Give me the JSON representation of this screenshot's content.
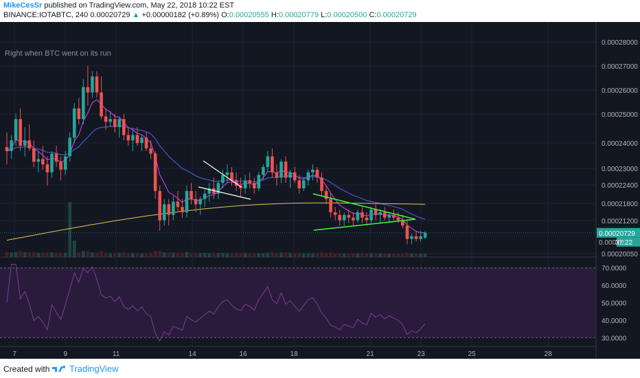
{
  "header": {
    "username": "MikeCesSr",
    "published_text": "published on TradingView.com, May 22, 2018 10:22 EST",
    "symbol": "BINANCE:IOTABTC, 240",
    "last": "0.00020729",
    "change_arrow": "▲",
    "change": "+0.00000182 (+0.89%)",
    "open_label": "O:",
    "open": "0.00020555",
    "high_label": "H:",
    "high": "0.00020779",
    "low_label": "L:",
    "low": "0.00020500",
    "close_label": "C:",
    "close": "0.00020729"
  },
  "footer": {
    "created_with": "Created with",
    "brand": "TradingView"
  },
  "colors": {
    "background": "#131722",
    "rsi_band": "#2a1b3d",
    "up": "#26a69a",
    "down": "#ef5350",
    "ema_fast": "#e040fb",
    "ema_mid": "#3f51b5",
    "ema_slow": "#e6c84a",
    "rsi": "#7b3f8f",
    "annot_white": "#ffffff",
    "annot_green": "#3cff3c",
    "price_tag": "#26a69a"
  },
  "chart_data": [
    {
      "type": "candlestick",
      "annotation": "Right when BTC went on its run",
      "x_ticks": [
        "7",
        "9",
        "11",
        "14",
        "16",
        "18",
        "21",
        "23",
        "25",
        "28"
      ],
      "x_tick_days": [
        7,
        9,
        11,
        14,
        16,
        18,
        21,
        23,
        25,
        28
      ],
      "y_ticks": [
        "0.00028000",
        "0.00027000",
        "0.00026000",
        "0.00025000",
        "0.00024000",
        "0.00023000",
        "0.00022400",
        "0.00021800",
        "0.00021200",
        "0.00020050"
      ],
      "y_tick_values": [
        0.00028,
        0.00027,
        0.00026,
        0.00025,
        0.00024,
        0.00023,
        0.000224,
        0.000218,
        0.000212,
        0.0002005
      ],
      "last_price_label": "0.00020729",
      "countdown_label": "37:22",
      "pre_tag_label": "0.00020",
      "candles_ohlc": [
        [
          0.0002395,
          0.000245,
          0.000233,
          0.000238
        ],
        [
          0.000238,
          0.000244,
          0.000235,
          0.000242
        ],
        [
          0.000242,
          0.000252,
          0.00024,
          0.00025
        ],
        [
          0.00025,
          0.000254,
          0.000238,
          0.00024
        ],
        [
          0.00024,
          0.000247,
          0.000236,
          0.000242
        ],
        [
          0.000242,
          0.000248,
          0.000238,
          0.000239
        ],
        [
          0.000239,
          0.000242,
          0.000232,
          0.000234
        ],
        [
          0.000234,
          0.000238,
          0.00023,
          0.000235
        ],
        [
          0.000235,
          0.00024,
          0.000231,
          0.000233
        ],
        [
          0.000233,
          0.000236,
          0.000225,
          0.00023
        ],
        [
          0.00023,
          0.000238,
          0.000228,
          0.000237
        ],
        [
          0.000237,
          0.00024,
          0.000232,
          0.000234
        ],
        [
          0.000234,
          0.000236,
          0.000227,
          0.000231
        ],
        [
          0.000231,
          0.000238,
          0.000229,
          0.000236
        ],
        [
          0.000236,
          0.000245,
          0.000234,
          0.000243
        ],
        [
          0.000243,
          0.000256,
          0.000241,
          0.000254
        ],
        [
          0.000254,
          0.000258,
          0.000248,
          0.00025
        ],
        [
          0.00025,
          0.000265,
          0.000248,
          0.000262
        ],
        [
          0.000262,
          0.00027,
          0.000255,
          0.00026
        ],
        [
          0.00026,
          0.000268,
          0.000258,
          0.000266
        ],
        [
          0.000266,
          0.000268,
          0.000258,
          0.00026
        ],
        [
          0.00026,
          0.000266,
          0.00025,
          0.000251
        ],
        [
          0.000251,
          0.000254,
          0.000246,
          0.000249
        ],
        [
          0.000249,
          0.000253,
          0.000247,
          0.00025
        ],
        [
          0.00025,
          0.000252,
          0.000245,
          0.000247
        ],
        [
          0.000247,
          0.000251,
          0.000243,
          0.00025
        ],
        [
          0.00025,
          0.000252,
          0.000242,
          0.000244
        ],
        [
          0.000244,
          0.000247,
          0.00024,
          0.000242
        ],
        [
          0.000242,
          0.000246,
          0.000238,
          0.000244
        ],
        [
          0.000244,
          0.000247,
          0.00024,
          0.000241
        ],
        [
          0.000241,
          0.000244,
          0.000238,
          0.000243
        ],
        [
          0.000243,
          0.000245,
          0.000238,
          0.000239
        ],
        [
          0.000239,
          0.000242,
          0.000235,
          0.000237
        ],
        [
          0.000237,
          0.000238,
          0.00022,
          0.000223
        ],
        [
          0.000223,
          0.000225,
          0.000208,
          0.000212
        ],
        [
          0.000212,
          0.00022,
          0.00021,
          0.000218
        ],
        [
          0.000218,
          0.00022,
          0.00021,
          0.000214
        ],
        [
          0.000214,
          0.000221,
          0.000212,
          0.000219
        ],
        [
          0.000219,
          0.000223,
          0.000215,
          0.000217
        ],
        [
          0.000217,
          0.00022,
          0.000213,
          0.000215
        ],
        [
          0.000215,
          0.000225,
          0.000213,
          0.000223
        ],
        [
          0.000223,
          0.000226,
          0.000218,
          0.00022
        ],
        [
          0.00022,
          0.000223,
          0.000215,
          0.000218
        ],
        [
          0.000218,
          0.000221,
          0.000214,
          0.00022
        ],
        [
          0.00022,
          0.000224,
          0.000217,
          0.000222
        ],
        [
          0.000222,
          0.000226,
          0.000219,
          0.000224
        ],
        [
          0.000224,
          0.000228,
          0.00022,
          0.000222
        ],
        [
          0.000222,
          0.000227,
          0.00022,
          0.000226
        ],
        [
          0.000226,
          0.000231,
          0.000224,
          0.000229
        ],
        [
          0.000229,
          0.000233,
          0.000226,
          0.00023
        ],
        [
          0.00023,
          0.000232,
          0.000225,
          0.000227
        ],
        [
          0.000227,
          0.00023,
          0.000223,
          0.000225
        ],
        [
          0.000225,
          0.000228,
          0.000221,
          0.000224
        ],
        [
          0.000224,
          0.000229,
          0.000222,
          0.000227
        ],
        [
          0.000227,
          0.00023,
          0.000224,
          0.000226
        ],
        [
          0.000226,
          0.000228,
          0.000222,
          0.000224
        ],
        [
          0.000224,
          0.00023,
          0.000223,
          0.000229
        ],
        [
          0.000229,
          0.000233,
          0.000227,
          0.000232
        ],
        [
          0.000232,
          0.000238,
          0.00023,
          0.000236
        ],
        [
          0.000236,
          0.000239,
          0.000228,
          0.00023
        ],
        [
          0.00023,
          0.000233,
          0.000225,
          0.000228
        ],
        [
          0.000228,
          0.000235,
          0.000226,
          0.000234
        ],
        [
          0.000234,
          0.000236,
          0.000226,
          0.000228
        ],
        [
          0.000228,
          0.000231,
          0.000224,
          0.00023
        ],
        [
          0.00023,
          0.000232,
          0.000226,
          0.000227
        ],
        [
          0.000227,
          0.000229,
          0.000222,
          0.000224
        ],
        [
          0.000224,
          0.000228,
          0.000223,
          0.000227
        ],
        [
          0.000227,
          0.000231,
          0.000225,
          0.00023
        ],
        [
          0.00023,
          0.000233,
          0.000227,
          0.000231
        ],
        [
          0.000231,
          0.000232,
          0.000226,
          0.000228
        ],
        [
          0.000228,
          0.00023,
          0.000221,
          0.000223
        ],
        [
          0.000223,
          0.000225,
          0.000218,
          0.00022
        ],
        [
          0.00022,
          0.000222,
          0.000213,
          0.000215
        ],
        [
          0.000215,
          0.000217,
          0.000212,
          0.000214
        ],
        [
          0.000214,
          0.000216,
          0.00021,
          0.000212
        ],
        [
          0.000212,
          0.000215,
          0.00021,
          0.000214
        ],
        [
          0.000214,
          0.000216,
          0.000211,
          0.000213
        ],
        [
          0.000213,
          0.000215,
          0.00021,
          0.000212
        ],
        [
          0.000212,
          0.000216,
          0.000211,
          0.000215
        ],
        [
          0.000215,
          0.000217,
          0.000211,
          0.000213
        ],
        [
          0.000213,
          0.000215,
          0.00021,
          0.000212
        ],
        [
          0.000212,
          0.000217,
          0.000211,
          0.000216
        ],
        [
          0.000216,
          0.000218,
          0.000212,
          0.000214
        ],
        [
          0.000214,
          0.000216,
          0.000211,
          0.000215
        ],
        [
          0.000215,
          0.000217,
          0.000212,
          0.000213
        ],
        [
          0.000213,
          0.000215,
          0.000211,
          0.000214
        ],
        [
          0.000214,
          0.000216,
          0.000212,
          0.000213
        ],
        [
          0.000213,
          0.000215,
          0.000211,
          0.000212
        ],
        [
          0.000212,
          0.000214,
          0.000209,
          0.00021
        ],
        [
          0.00021,
          0.000212,
          0.000203,
          0.000205
        ],
        [
          0.000205,
          0.000207,
          0.000203,
          0.000206
        ],
        [
          0.000206,
          0.000208,
          0.000204,
          0.000205
        ],
        [
          0.000205,
          0.000208,
          0.000204,
          0.000206
        ],
        [
          0.0002055,
          0.0002078,
          0.000205,
          0.0002073
        ]
      ],
      "first_candle_day": 6.1,
      "candle_step_days": 0.1667,
      "rsi_y_ticks": [
        "70.0000",
        "60.0000",
        "50.0000",
        "40.0000",
        "30.0000"
      ],
      "rsi_y_tick_values": [
        70,
        60,
        50,
        40,
        30
      ],
      "rsi_overbought": 70,
      "rsi_oversold": 30
    }
  ]
}
